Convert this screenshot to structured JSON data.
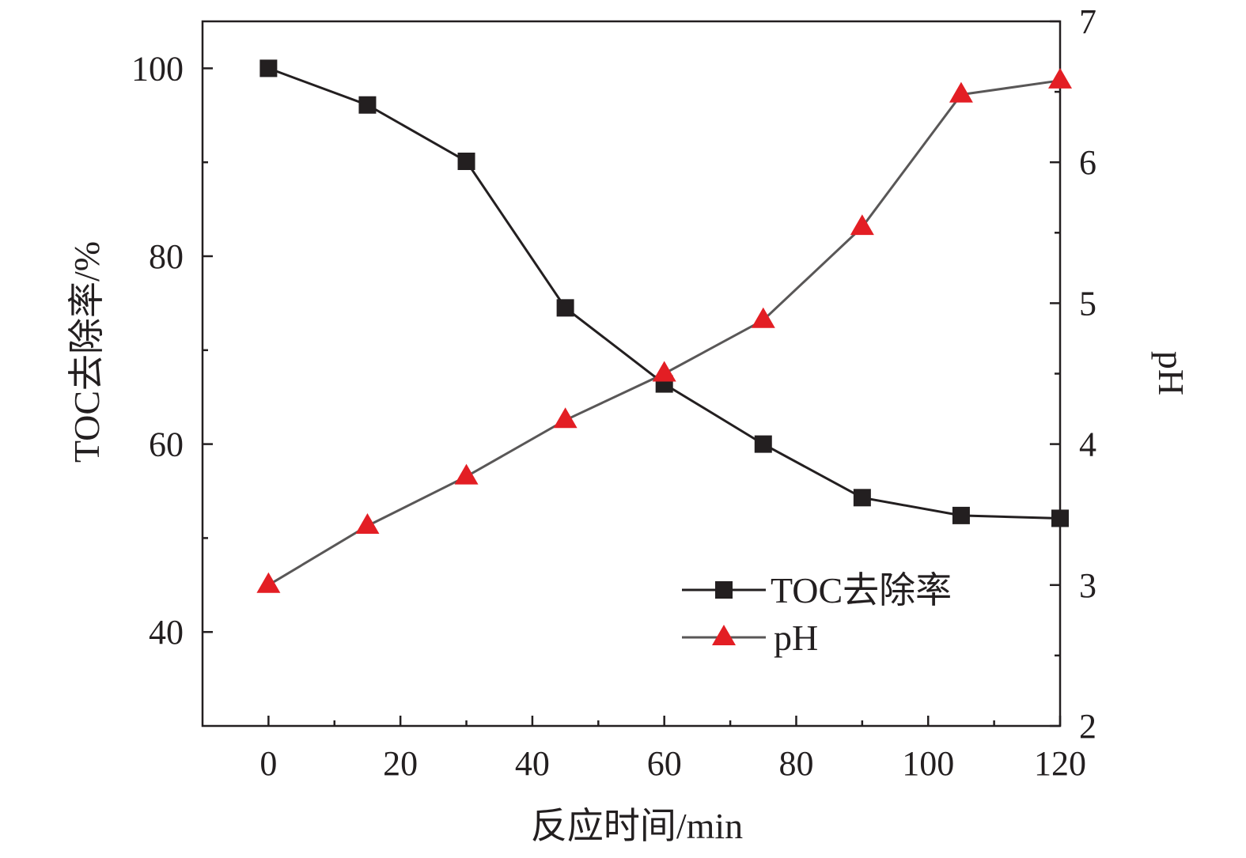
{
  "chart_data": {
    "type": "line",
    "title": "",
    "xlabel": "反应时间/min",
    "ylabel_left": "TOC去除率/%",
    "ylabel_right": "pH",
    "xlim": [
      -10,
      120
    ],
    "ylim_left": [
      30,
      105
    ],
    "ylim_right": [
      2,
      7
    ],
    "x_ticks": [
      0,
      20,
      40,
      60,
      80,
      100,
      120
    ],
    "y_left_ticks": [
      40,
      60,
      80,
      100
    ],
    "y_right_ticks": [
      2,
      3,
      4,
      5,
      6,
      7
    ],
    "x": [
      0,
      15,
      30,
      45,
      60,
      75,
      90,
      105,
      120
    ],
    "series": [
      {
        "name": "TOC去除率",
        "axis": "left",
        "marker": "square",
        "color": "#231f20",
        "line_color": "#231f20",
        "values": [
          100,
          96.1,
          90.1,
          74.5,
          66.4,
          60.0,
          54.3,
          52.4,
          52.1
        ]
      },
      {
        "name": "pH",
        "axis": "right",
        "marker": "triangle",
        "color": "#e31e24",
        "line_color": "#595757",
        "values": [
          3.0,
          3.42,
          3.77,
          4.17,
          4.5,
          4.88,
          5.54,
          6.48,
          6.58
        ]
      }
    ],
    "legend_position": "bottom-right",
    "grid": false
  }
}
